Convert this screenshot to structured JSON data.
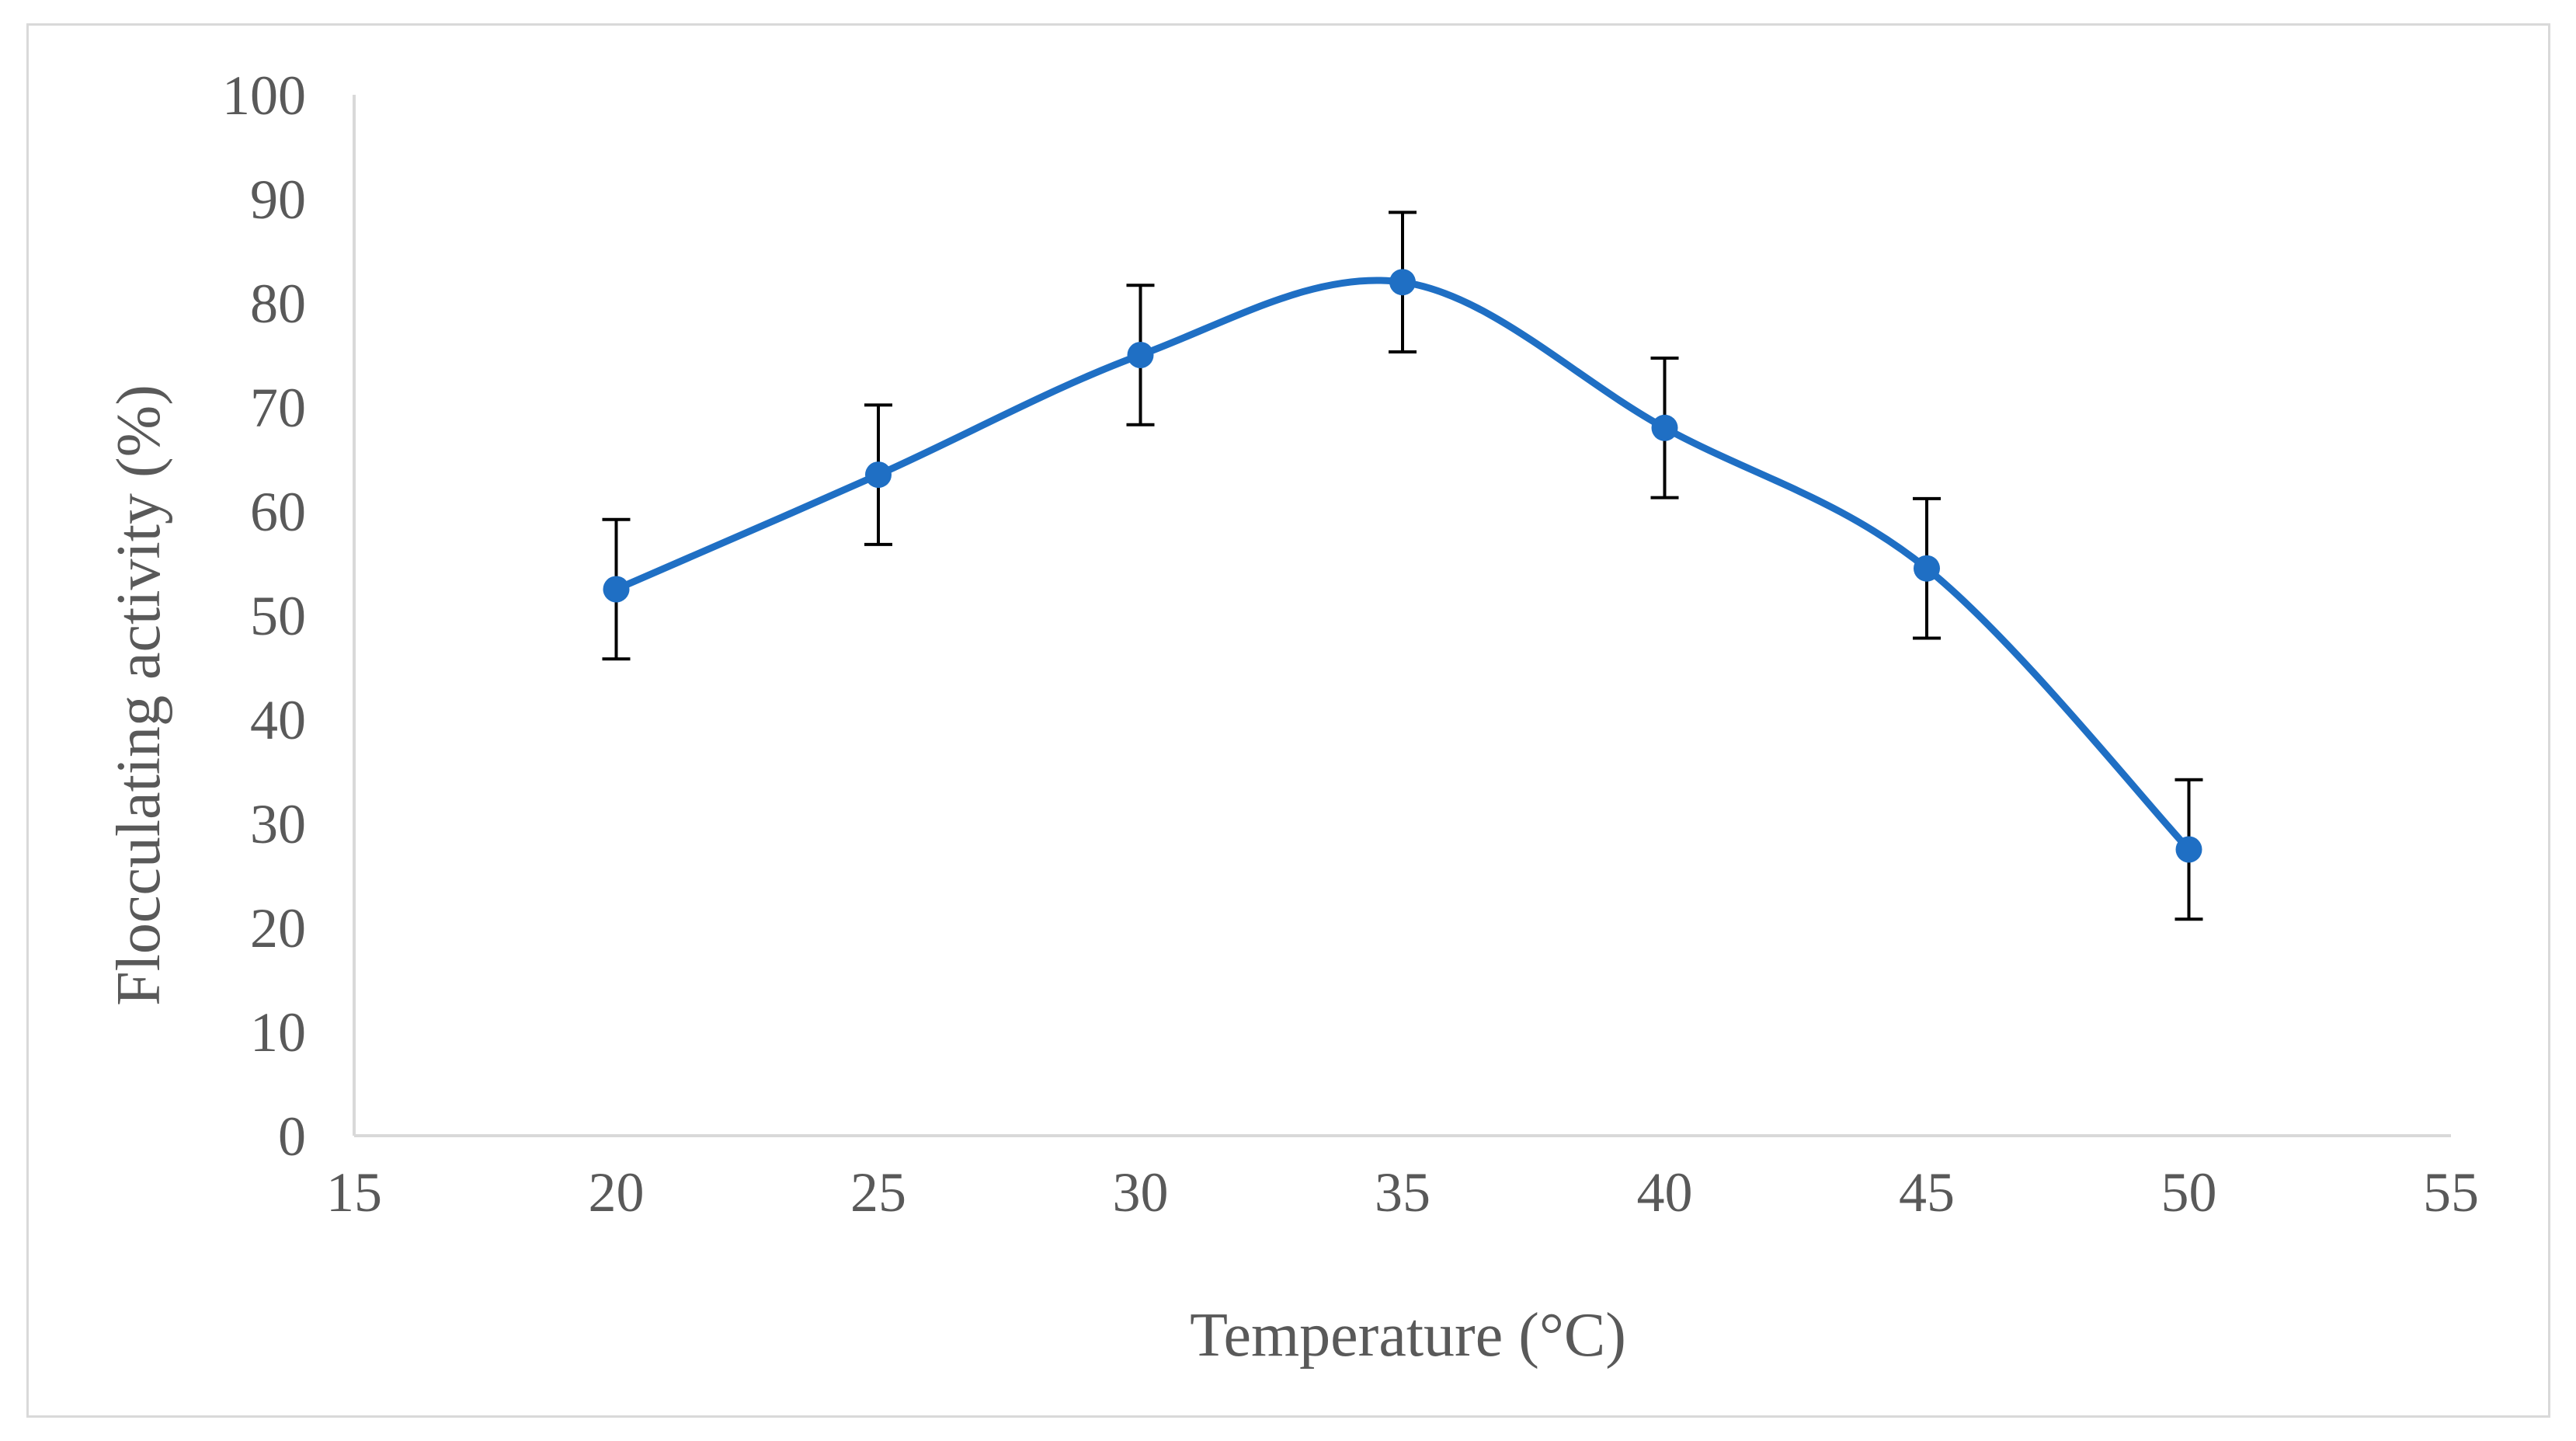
{
  "chart_data": {
    "type": "line",
    "title": "",
    "xlabel": "Temperature (°C)",
    "ylabel": "Flocculating activity (%)",
    "xlim": [
      15,
      55
    ],
    "ylim": [
      0,
      100
    ],
    "x_ticks": [
      15,
      20,
      25,
      30,
      35,
      40,
      45,
      50,
      55
    ],
    "y_ticks": [
      0,
      10,
      20,
      30,
      40,
      50,
      60,
      70,
      80,
      90,
      100
    ],
    "grid": false,
    "smooth": true,
    "series": [
      {
        "name": "Flocculating activity",
        "x": [
          20,
          25,
          30,
          35,
          40,
          45,
          50
        ],
        "y": [
          52.5,
          63.5,
          75,
          82,
          68,
          54.5,
          27.5
        ],
        "error": [
          6.7,
          6.7,
          6.7,
          6.7,
          6.7,
          6.7,
          6.7
        ]
      }
    ],
    "colors": {
      "line": "#1f6fc4",
      "marker": "#1f6fc4",
      "error_bar": "#000000",
      "axis": "#d9d9d9",
      "text": "#595959",
      "frame": "#d9d9d9"
    }
  }
}
